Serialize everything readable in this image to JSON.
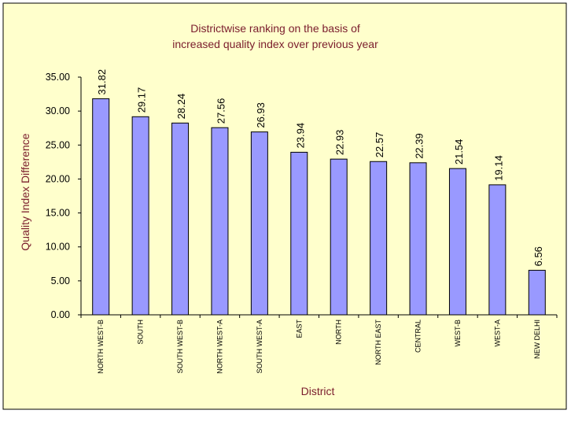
{
  "chart_data": {
    "type": "bar",
    "title_lines": [
      "Districtwise ranking on the basis of",
      "increased quality index over previous year"
    ],
    "xlabel": "District",
    "ylabel": "Quality Index Difference",
    "ylim": [
      0,
      35
    ],
    "yticks": [
      "0.00",
      "5.00",
      "10.00",
      "15.00",
      "20.00",
      "25.00",
      "30.00",
      "35.00"
    ],
    "categories": [
      "NORTH WEST-B",
      "SOUTH",
      "SOUTH WEST-B",
      "NORTH WEST-A",
      "SOUTH WEST-A",
      "EAST",
      "NORTH",
      "NORTH EAST",
      "CENTRAL",
      "WEST-B",
      "WEST-A",
      "NEW DELHI"
    ],
    "values": [
      31.82,
      29.17,
      28.24,
      27.56,
      26.93,
      23.94,
      22.93,
      22.57,
      22.39,
      21.54,
      19.14,
      6.56
    ],
    "data_labels": [
      "31.82",
      "29.17",
      "28.24",
      "27.56",
      "26.93",
      "23.94",
      "22.93",
      "22.57",
      "22.39",
      "21.54",
      "19.14",
      "6.56"
    ],
    "grid": false,
    "legend": "none",
    "colors": {
      "background": "#ffffcc",
      "bar_fill": "#9999ff",
      "bar_stroke": "#000000",
      "title": "#7a1c2c",
      "frame": "#000000"
    }
  }
}
